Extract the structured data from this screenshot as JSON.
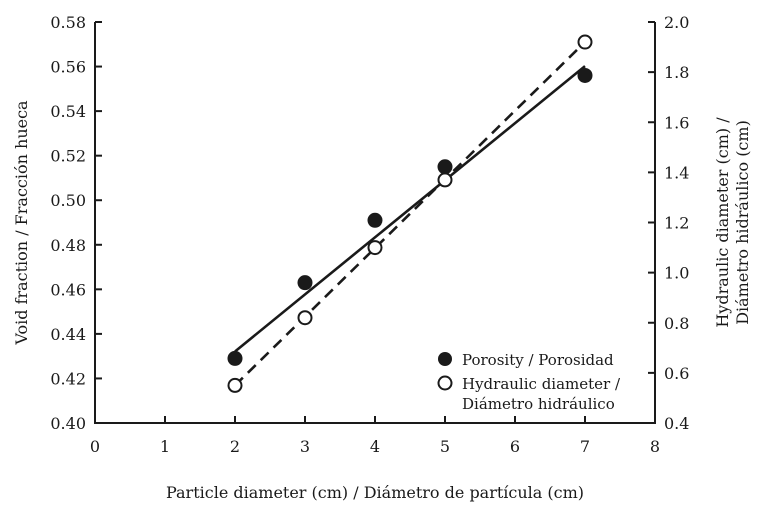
{
  "chart_data": {
    "type": "scatter",
    "title": "",
    "xlabel": "Particle diameter (cm) / Diámetro de partícula (cm)",
    "ylabel_left_line1": "Void fraction / Fracción hueca",
    "ylabel_right_line1": "Hydraulic diameter (cm) /",
    "ylabel_right_line2": "Diámetro hidráulico (cm)",
    "xlim": [
      0,
      8
    ],
    "ylim_left": [
      0.4,
      0.58
    ],
    "ylim_right": [
      0.4,
      2.0
    ],
    "x_ticks": [
      "0",
      "1",
      "2",
      "3",
      "4",
      "5",
      "6",
      "7",
      "8"
    ],
    "y_left_ticks": [
      "0.40",
      "0.42",
      "0.44",
      "0.46",
      "0.48",
      "0.50",
      "0.52",
      "0.54",
      "0.56",
      "0.58"
    ],
    "y_right_ticks": [
      "0.4",
      "0.6",
      "0.8",
      "1.0",
      "1.2",
      "1.4",
      "1.6",
      "1.8",
      "2.0"
    ],
    "grid": false,
    "legend_position": "bottom-right",
    "series": [
      {
        "name": "Porosity / Porosidad",
        "axis": "left",
        "marker": "filled-circle",
        "fit_line": "solid",
        "x": [
          2,
          3,
          4,
          5,
          7
        ],
        "y": [
          0.429,
          0.463,
          0.491,
          0.515,
          0.556
        ],
        "fit": {
          "x": [
            2,
            7
          ],
          "y": [
            0.4321,
            0.5602
          ]
        }
      },
      {
        "name_line1": "Hydraulic diameter /",
        "name_line2": "Diámetro hidráulico",
        "axis": "right",
        "marker": "open-circle",
        "fit_line": "dashed",
        "x": [
          2,
          3,
          4,
          5,
          7
        ],
        "y": [
          0.55,
          0.82,
          1.1,
          1.37,
          1.92
        ],
        "fit": {
          "x": [
            2,
            7
          ],
          "y": [
            0.55,
            1.92
          ]
        }
      }
    ]
  }
}
